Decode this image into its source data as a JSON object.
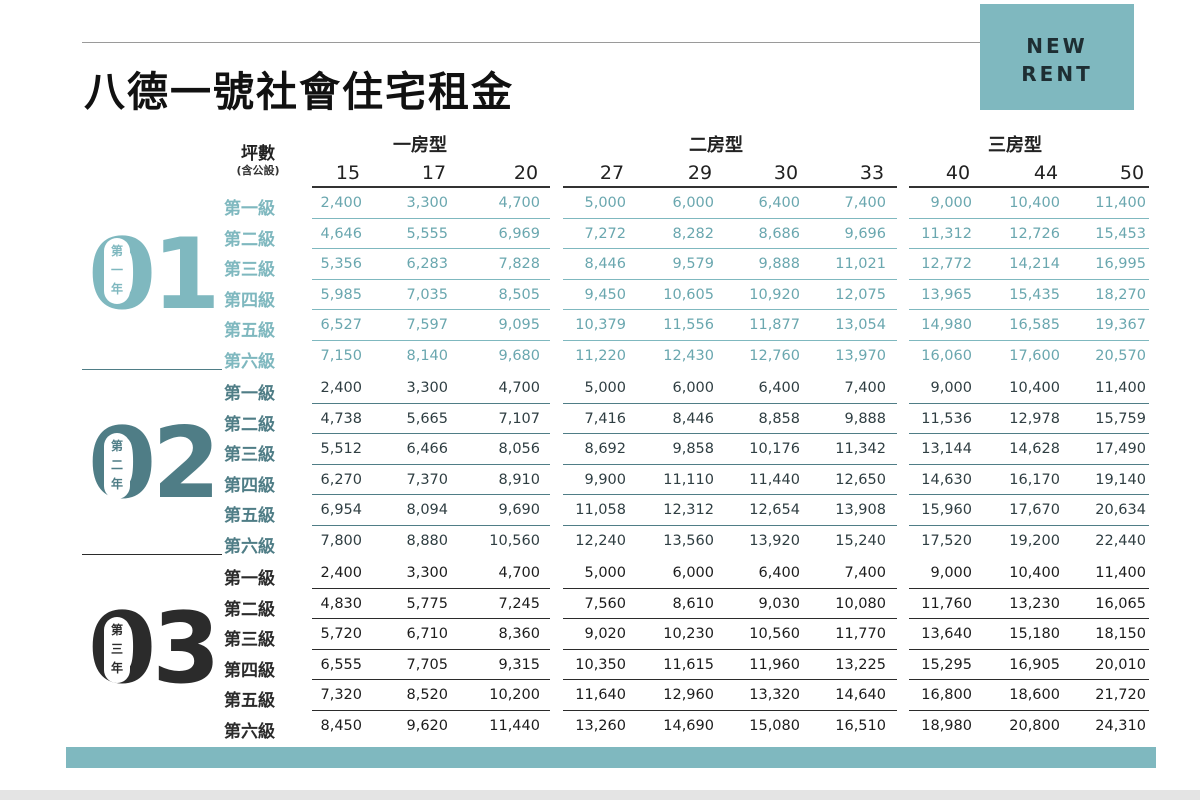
{
  "badge": {
    "line1": "NEW",
    "line2": "RENT"
  },
  "title": "八德一號社會住宅租金",
  "header": {
    "unit_label": "坪數",
    "unit_sub": "(含公設)",
    "groups": [
      "一房型",
      "二房型",
      "三房型"
    ],
    "sizes": [
      "15",
      "17",
      "20",
      "27",
      "29",
      "30",
      "33",
      "40",
      "44",
      "50"
    ]
  },
  "colors": {
    "teal_light": "#7fb8bf",
    "teal_mid": "#4f7d86",
    "dark": "#2b2b2b",
    "badge_bg": "#7fb8bf"
  },
  "years": [
    {
      "number": "01",
      "pill": [
        "第",
        "一",
        "年"
      ],
      "color": "#7fb8bf",
      "rows": [
        {
          "label": "第一級",
          "values": [
            "2,400",
            "3,300",
            "4,700",
            "5,000",
            "6,000",
            "6,400",
            "7,400",
            "9,000",
            "10,400",
            "11,400"
          ]
        },
        {
          "label": "第二級",
          "values": [
            "4,646",
            "5,555",
            "6,969",
            "7,272",
            "8,282",
            "8,686",
            "9,696",
            "11,312",
            "12,726",
            "15,453"
          ]
        },
        {
          "label": "第三級",
          "values": [
            "5,356",
            "6,283",
            "7,828",
            "8,446",
            "9,579",
            "9,888",
            "11,021",
            "12,772",
            "14,214",
            "16,995"
          ]
        },
        {
          "label": "第四級",
          "values": [
            "5,985",
            "7,035",
            "8,505",
            "9,450",
            "10,605",
            "10,920",
            "12,075",
            "13,965",
            "15,435",
            "18,270"
          ]
        },
        {
          "label": "第五級",
          "values": [
            "6,527",
            "7,597",
            "9,095",
            "10,379",
            "11,556",
            "11,877",
            "13,054",
            "14,980",
            "16,585",
            "19,367"
          ]
        },
        {
          "label": "第六級",
          "values": [
            "7,150",
            "8,140",
            "9,680",
            "11,220",
            "12,430",
            "12,760",
            "13,970",
            "16,060",
            "17,600",
            "20,570"
          ]
        }
      ]
    },
    {
      "number": "02",
      "pill": [
        "第",
        "二",
        "年"
      ],
      "color": "#4f7d86",
      "rows": [
        {
          "label": "第一級",
          "values": [
            "2,400",
            "3,300",
            "4,700",
            "5,000",
            "6,000",
            "6,400",
            "7,400",
            "9,000",
            "10,400",
            "11,400"
          ]
        },
        {
          "label": "第二級",
          "values": [
            "4,738",
            "5,665",
            "7,107",
            "7,416",
            "8,446",
            "8,858",
            "9,888",
            "11,536",
            "12,978",
            "15,759"
          ]
        },
        {
          "label": "第三級",
          "values": [
            "5,512",
            "6,466",
            "8,056",
            "8,692",
            "9,858",
            "10,176",
            "11,342",
            "13,144",
            "14,628",
            "17,490"
          ]
        },
        {
          "label": "第四級",
          "values": [
            "6,270",
            "7,370",
            "8,910",
            "9,900",
            "11,110",
            "11,440",
            "12,650",
            "14,630",
            "16,170",
            "19,140"
          ]
        },
        {
          "label": "第五級",
          "values": [
            "6,954",
            "8,094",
            "9,690",
            "11,058",
            "12,312",
            "12,654",
            "13,908",
            "15,960",
            "17,670",
            "20,634"
          ]
        },
        {
          "label": "第六級",
          "values": [
            "7,800",
            "8,880",
            "10,560",
            "12,240",
            "13,560",
            "13,920",
            "15,240",
            "17,520",
            "19,200",
            "22,440"
          ]
        }
      ]
    },
    {
      "number": "03",
      "pill": [
        "第",
        "三",
        "年"
      ],
      "color": "#2b2b2b",
      "rows": [
        {
          "label": "第一級",
          "values": [
            "2,400",
            "3,300",
            "4,700",
            "5,000",
            "6,000",
            "6,400",
            "7,400",
            "9,000",
            "10,400",
            "11,400"
          ]
        },
        {
          "label": "第二級",
          "values": [
            "4,830",
            "5,775",
            "7,245",
            "7,560",
            "8,610",
            "9,030",
            "10,080",
            "11,760",
            "13,230",
            "16,065"
          ]
        },
        {
          "label": "第三級",
          "values": [
            "5,720",
            "6,710",
            "8,360",
            "9,020",
            "10,230",
            "10,560",
            "11,770",
            "13,640",
            "15,180",
            "18,150"
          ]
        },
        {
          "label": "第四級",
          "values": [
            "6,555",
            "7,705",
            "9,315",
            "10,350",
            "11,615",
            "11,960",
            "13,225",
            "15,295",
            "16,905",
            "20,010"
          ]
        },
        {
          "label": "第五級",
          "values": [
            "7,320",
            "8,520",
            "10,200",
            "11,640",
            "12,960",
            "13,320",
            "14,640",
            "16,800",
            "18,600",
            "21,720"
          ]
        },
        {
          "label": "第六級",
          "values": [
            "8,450",
            "9,620",
            "11,440",
            "13,260",
            "14,690",
            "15,080",
            "16,510",
            "18,980",
            "20,800",
            "24,310"
          ]
        }
      ]
    }
  ]
}
